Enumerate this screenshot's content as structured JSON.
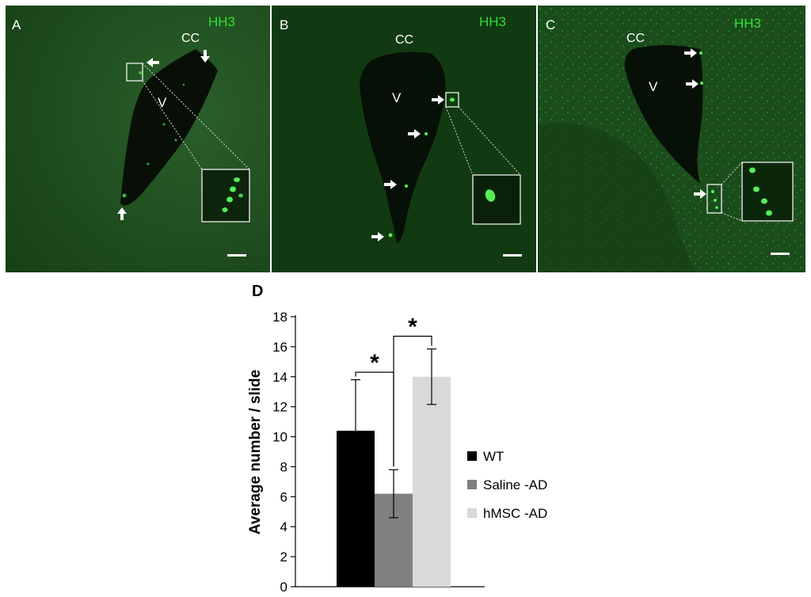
{
  "figure": {
    "panels": [
      {
        "letter": "A",
        "stain": "HH3",
        "labels": [
          "CC",
          "V"
        ],
        "arrow_icon": "white-arrow-icon",
        "inset": "magnified-inset",
        "scale_bar": "scale-bar",
        "colors": {
          "stain_label": "#33e033",
          "background": "#1c4a1c"
        }
      },
      {
        "letter": "B",
        "stain": "HH3",
        "labels": [
          "CC",
          "V"
        ],
        "arrow_icon": "white-arrow-icon",
        "inset": "magnified-inset",
        "scale_bar": "scale-bar",
        "colors": {
          "stain_label": "#33e033",
          "background": "#123a12"
        }
      },
      {
        "letter": "C",
        "stain": "HH3",
        "labels": [
          "CC",
          "V"
        ],
        "arrow_icon": "white-arrow-icon",
        "inset": "magnified-inset",
        "scale_bar": "scale-bar",
        "colors": {
          "stain_label": "#33e033",
          "background": "#1a4a1a"
        }
      }
    ]
  },
  "chart_data": {
    "type": "bar",
    "panel_letter": "D",
    "title": "",
    "xlabel": "",
    "ylabel": "Average number / slide",
    "ylim": [
      0,
      18
    ],
    "yticks": [
      "0",
      "2",
      "4",
      "6",
      "8",
      "10",
      "12",
      "14",
      "16",
      "18"
    ],
    "categories": [
      "WT",
      "Saline -AD",
      "hMSC -AD"
    ],
    "values": [
      10.4,
      6.2,
      14.0
    ],
    "errors": [
      3.4,
      1.6,
      1.85
    ],
    "colors": [
      "#000000",
      "#808080",
      "#d9d9d9"
    ],
    "legend": {
      "position": "right",
      "entries": [
        "WT",
        "Saline -AD",
        "hMSC -AD"
      ]
    },
    "significance": [
      {
        "between": [
          "WT",
          "Saline -AD"
        ],
        "label": "*"
      },
      {
        "between": [
          "Saline -AD",
          "hMSC -AD"
        ],
        "label": "*"
      }
    ],
    "grid": false
  }
}
